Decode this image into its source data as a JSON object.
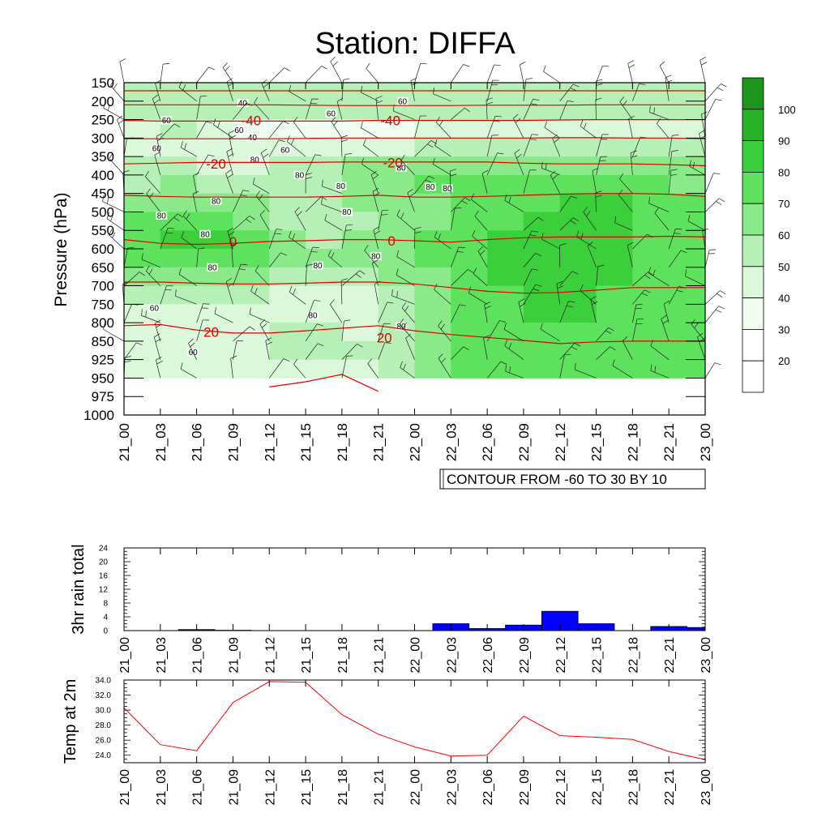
{
  "colors": {
    "green_scale": [
      "#ffffff",
      "#f0fdf0",
      "#dbf8db",
      "#b6f0b6",
      "#8aea8a",
      "#5ee25e",
      "#3ccf3c",
      "#27b227",
      "#1d951d"
    ],
    "temp_line": "#e00000",
    "rain_bar": "#0000ff",
    "temp2m_line": "#ff0000"
  },
  "chart_data": [
    {
      "type": "heatmap",
      "title": "Station: DIFFA",
      "ylabel": "Pressure (hPa)",
      "categories": [
        "21_00",
        "21_03",
        "21_06",
        "21_09",
        "21_12",
        "21_15",
        "21_18",
        "21_21",
        "22_00",
        "22_03",
        "22_06",
        "22_09",
        "22_12",
        "22_15",
        "22_18",
        "22_21",
        "23_00"
      ],
      "pressure_levels": [
        150,
        200,
        250,
        300,
        350,
        400,
        450,
        500,
        550,
        600,
        650,
        700,
        750,
        800,
        850,
        925,
        950,
        975,
        1000
      ],
      "pressure_labels": [
        "150",
        "200",
        "250",
        "300",
        "350",
        "400",
        "450",
        "500",
        "550",
        "600",
        "650",
        "700",
        "750",
        "800",
        "850",
        "925",
        "950",
        "975",
        "1000"
      ],
      "data_bottom_level": 950,
      "humidity_levels": [
        250,
        300,
        350,
        400,
        450,
        500,
        550,
        600,
        650,
        700,
        750,
        800,
        850,
        925,
        950
      ],
      "humidity": [
        [
          55,
          65,
          60,
          50,
          45,
          55,
          40,
          45,
          50,
          55,
          50,
          45,
          50,
          55,
          50,
          50,
          55
        ],
        [
          50,
          60,
          60,
          50,
          45,
          50,
          45,
          45,
          55,
          60,
          55,
          50,
          55,
          60,
          55,
          55,
          60
        ],
        [
          55,
          60,
          55,
          55,
          55,
          60,
          70,
          65,
          70,
          75,
          70,
          70,
          75,
          75,
          70,
          70,
          65
        ],
        [
          60,
          65,
          65,
          60,
          60,
          65,
          75,
          80,
          80,
          80,
          80,
          85,
          85,
          80,
          80,
          75,
          70
        ],
        [
          70,
          75,
          75,
          70,
          65,
          60,
          70,
          75,
          80,
          80,
          80,
          85,
          90,
          90,
          85,
          80,
          75
        ],
        [
          75,
          80,
          80,
          75,
          70,
          60,
          65,
          70,
          75,
          80,
          80,
          85,
          90,
          95,
          90,
          85,
          85
        ],
        [
          80,
          90,
          95,
          90,
          75,
          65,
          65,
          75,
          80,
          80,
          85,
          95,
          100,
          95,
          90,
          85,
          90
        ],
        [
          80,
          90,
          95,
          90,
          75,
          70,
          70,
          75,
          80,
          80,
          85,
          95,
          100,
          95,
          90,
          85,
          85
        ],
        [
          75,
          80,
          85,
          80,
          75,
          70,
          70,
          75,
          80,
          80,
          85,
          95,
          100,
          95,
          90,
          85,
          85
        ],
        [
          70,
          75,
          75,
          70,
          65,
          60,
          55,
          60,
          75,
          80,
          85,
          95,
          95,
          90,
          85,
          85,
          80
        ],
        [
          60,
          60,
          60,
          55,
          55,
          50,
          45,
          50,
          70,
          80,
          80,
          90,
          95,
          85,
          80,
          80,
          80
        ],
        [
          55,
          55,
          55,
          55,
          60,
          60,
          50,
          55,
          70,
          80,
          80,
          85,
          95,
          85,
          80,
          80,
          80
        ],
        [
          50,
          55,
          55,
          55,
          60,
          70,
          70,
          60,
          75,
          80,
          80,
          85,
          90,
          80,
          80,
          80,
          85
        ],
        [
          50,
          50,
          50,
          55,
          55,
          55,
          60,
          55,
          70,
          80,
          80,
          80,
          85,
          80,
          80,
          80,
          85
        ],
        [
          50,
          50,
          50,
          55,
          55,
          55,
          55,
          55,
          70,
          80,
          80,
          80,
          80,
          80,
          80,
          80,
          85
        ]
      ],
      "humidity_labels": [
        {
          "text": "40",
          "p": 205,
          "t": 9.8
        },
        {
          "text": "40",
          "p": 298,
          "t": 10.6
        },
        {
          "text": "60",
          "p": 252,
          "t": 3.5
        },
        {
          "text": "60",
          "p": 328,
          "t": 2.7
        },
        {
          "text": "60",
          "p": 278,
          "t": 9.5
        },
        {
          "text": "60",
          "p": 332,
          "t": 13.3
        },
        {
          "text": "60",
          "p": 233,
          "t": 17.1
        },
        {
          "text": "60",
          "p": 200,
          "t": 23.0
        },
        {
          "text": "80",
          "p": 358,
          "t": 10.8
        },
        {
          "text": "80",
          "p": 400,
          "t": 14.5
        },
        {
          "text": "80",
          "p": 430,
          "t": 17.9
        },
        {
          "text": "80",
          "p": 380,
          "t": 22.9
        },
        {
          "text": "80",
          "p": 432,
          "t": 25.3
        },
        {
          "text": "80",
          "p": 470,
          "t": 7.6
        },
        {
          "text": "80",
          "p": 500,
          "t": 18.4
        },
        {
          "text": "80",
          "p": 510,
          "t": 3.1
        },
        {
          "text": "80",
          "p": 560,
          "t": 6.7
        },
        {
          "text": "80",
          "p": 650,
          "t": 7.3
        },
        {
          "text": "80",
          "p": 645,
          "t": 16.0
        },
        {
          "text": "80",
          "p": 620,
          "t": 20.8
        },
        {
          "text": "80",
          "p": 780,
          "t": 15.6
        },
        {
          "text": "80",
          "p": 810,
          "t": 22.9
        },
        {
          "text": "80",
          "p": 436,
          "t": 26.7
        },
        {
          "text": "60",
          "p": 760,
          "t": 2.5
        },
        {
          "text": "60",
          "p": 895,
          "t": 5.7
        }
      ],
      "temperature_contours": [
        {
          "label": "-60",
          "p": [
            172,
            172,
            172,
            172,
            172,
            172,
            172,
            172,
            172,
            172,
            172,
            172,
            172,
            172,
            172,
            172,
            172
          ]
        },
        {
          "label": "",
          "p": [
            210,
            210,
            210,
            210,
            210,
            211,
            212,
            212,
            212,
            212,
            211,
            211,
            211,
            210,
            210,
            210,
            210
          ]
        },
        {
          "label": "-40",
          "p": [
            252,
            254,
            254,
            254,
            254,
            254,
            254,
            252,
            252,
            252,
            252,
            252,
            251,
            250,
            250,
            250,
            250
          ]
        },
        {
          "label": "",
          "p": [
            302,
            302,
            302,
            302,
            302,
            301,
            300,
            300,
            300,
            300,
            300,
            300,
            299,
            299,
            300,
            300,
            302
          ]
        },
        {
          "label": "-20",
          "p": [
            370,
            368,
            366,
            366,
            366,
            366,
            365,
            365,
            365,
            365,
            365,
            368,
            370,
            370,
            370,
            372,
            375
          ]
        },
        {
          "label": "",
          "p": [
            455,
            458,
            460,
            460,
            460,
            460,
            458,
            455,
            460,
            460,
            458,
            455,
            452,
            450,
            450,
            452,
            458
          ]
        },
        {
          "label": "0",
          "p": [
            575,
            585,
            588,
            585,
            580,
            578,
            575,
            575,
            578,
            582,
            575,
            570,
            568,
            568,
            568,
            566,
            568
          ]
        },
        {
          "label": "",
          "p": [
            690,
            690,
            693,
            695,
            695,
            693,
            690,
            690,
            695,
            705,
            715,
            720,
            718,
            712,
            705,
            705,
            705
          ]
        },
        {
          "label": "20",
          "p": [
            808,
            805,
            820,
            828,
            828,
            822,
            815,
            808,
            822,
            832,
            840,
            848,
            860,
            853,
            850,
            850,
            850
          ]
        },
        {
          "label": "",
          "p": [
            null,
            null,
            null,
            null,
            962,
            955,
            945,
            968,
            null,
            null,
            null,
            null,
            null,
            null,
            null,
            null,
            null
          ]
        }
      ],
      "temperature_label_positions": [
        {
          "text": "-40",
          "p": 252,
          "t": 10.5
        },
        {
          "text": "-40",
          "p": 252,
          "t": 22.0
        },
        {
          "text": "-20",
          "p": 370,
          "t": 7.6
        },
        {
          "text": "-20",
          "p": 366,
          "t": 22.2
        },
        {
          "text": "0",
          "p": 580,
          "t": 9.0
        },
        {
          "text": "0",
          "p": 578,
          "t": 22.1
        },
        {
          "text": "20",
          "p": 825,
          "t": 7.2
        },
        {
          "text": "20",
          "p": 840,
          "t": 21.5
        }
      ],
      "colorbar_labels": [
        "100",
        "90",
        "80",
        "70",
        "60",
        "50",
        "40",
        "30",
        "20"
      ],
      "annotation": "CONTOUR FROM -60 TO 30 BY 10"
    },
    {
      "type": "bar",
      "ylabel": "3hr rain total",
      "ylim": [
        0,
        24
      ],
      "yticks": [
        "0",
        "4",
        "8",
        "12",
        "16",
        "20",
        "24"
      ],
      "categories": [
        "21_00",
        "21_03",
        "21_06",
        "21_09",
        "21_12",
        "21_15",
        "21_18",
        "21_21",
        "22_00",
        "22_03",
        "22_06",
        "22_09",
        "22_12",
        "22_15",
        "22_18",
        "22_21",
        "23_00"
      ],
      "values": [
        0,
        0,
        0.3,
        0.1,
        0,
        0,
        0,
        0,
        0,
        2.0,
        0.6,
        1.6,
        5.6,
        2.0,
        0,
        1.2,
        0.9
      ]
    },
    {
      "type": "line",
      "ylabel": "Temp at 2m",
      "ylim": [
        23.0,
        34.0
      ],
      "yticks": [
        "24.0",
        "26.0",
        "28.0",
        "30.0",
        "32.0",
        "34.0"
      ],
      "categories": [
        "21_00",
        "21_03",
        "21_06",
        "21_09",
        "21_12",
        "21_15",
        "21_18",
        "21_21",
        "22_00",
        "22_03",
        "22_06",
        "22_09",
        "22_12",
        "22_15",
        "22_18",
        "22_21",
        "23_00"
      ],
      "values": [
        30.3,
        25.4,
        24.6,
        31.0,
        33.8,
        33.7,
        29.4,
        26.8,
        25.1,
        23.9,
        24.0,
        29.2,
        26.6,
        26.4,
        26.1,
        24.5,
        23.4
      ]
    }
  ]
}
